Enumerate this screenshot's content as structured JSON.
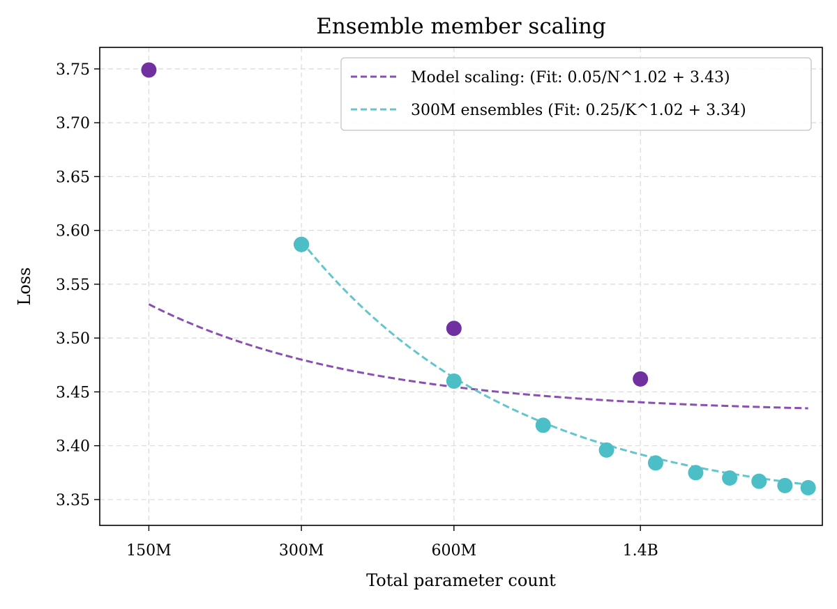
{
  "chart_data": {
    "type": "line",
    "title": "Ensemble member scaling",
    "xlabel": "Total parameter count",
    "ylabel": "Loss",
    "x_scale": "log",
    "xlim": [
      120,
      3200
    ],
    "ylim": [
      3.326,
      3.77
    ],
    "x_ticks": [
      {
        "value": 150,
        "label": "150M"
      },
      {
        "value": 300,
        "label": "300M"
      },
      {
        "value": 600,
        "label": "600M"
      },
      {
        "value": 1400,
        "label": "1.4B"
      }
    ],
    "y_ticks": [
      {
        "value": 3.75,
        "label": "3.75"
      },
      {
        "value": 3.7,
        "label": "3.70"
      },
      {
        "value": 3.65,
        "label": "3.65"
      },
      {
        "value": 3.6,
        "label": "3.60"
      },
      {
        "value": 3.55,
        "label": "3.55"
      },
      {
        "value": 3.5,
        "label": "3.50"
      },
      {
        "value": 3.45,
        "label": "3.45"
      },
      {
        "value": 3.4,
        "label": "3.40"
      },
      {
        "value": 3.35,
        "label": "3.35"
      }
    ],
    "grid": true,
    "legend_position": "top-right",
    "series": [
      {
        "name": "Model scaling: (Fit: 0.05/N^1.02 + 3.43)",
        "color": "#7030a0",
        "line_color": "#8a4fb0",
        "points": [
          {
            "x": 150,
            "y": 3.749
          },
          {
            "x": 300,
            "y": 3.587
          },
          {
            "x": 600,
            "y": 3.509
          },
          {
            "x": 1400,
            "y": 3.462
          }
        ],
        "fit": {
          "a": 0.05,
          "b": 1.02,
          "c": 3.43,
          "unit": 300,
          "x_start": 150,
          "x_end": 3000
        }
      },
      {
        "name": "300M ensembles (Fit: 0.25/K^1.02 + 3.34)",
        "color": "#4cbfc6",
        "line_color": "#63c6cc",
        "points": [
          {
            "x": 300,
            "y": 3.587
          },
          {
            "x": 600,
            "y": 3.46
          },
          {
            "x": 900,
            "y": 3.419
          },
          {
            "x": 1200,
            "y": 3.396
          },
          {
            "x": 1500,
            "y": 3.384
          },
          {
            "x": 1800,
            "y": 3.375
          },
          {
            "x": 2100,
            "y": 3.37
          },
          {
            "x": 2400,
            "y": 3.367
          },
          {
            "x": 2700,
            "y": 3.363
          },
          {
            "x": 3000,
            "y": 3.361
          }
        ],
        "fit": {
          "a": 0.25,
          "b": 1.02,
          "c": 3.34,
          "unit": 300,
          "x_start": 300,
          "x_end": 3000
        }
      }
    ]
  }
}
